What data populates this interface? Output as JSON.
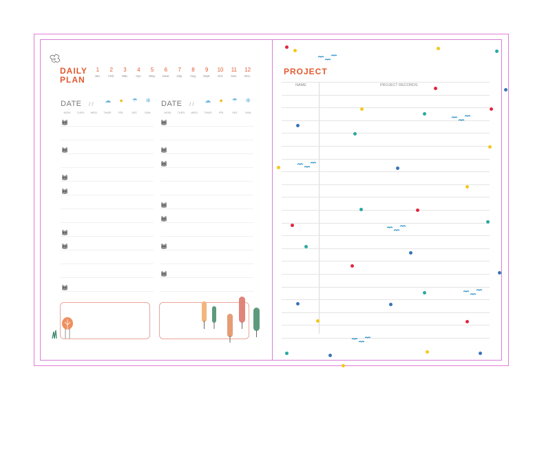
{
  "left_page": {
    "title_line1": "DAILY",
    "title_line2": "PLAN",
    "months": [
      {
        "num": "1",
        "abbr": "Jan."
      },
      {
        "num": "2",
        "abbr": "Feb."
      },
      {
        "num": "3",
        "abbr": "Mar."
      },
      {
        "num": "4",
        "abbr": "Apr."
      },
      {
        "num": "5",
        "abbr": "May."
      },
      {
        "num": "6",
        "abbr": "June."
      },
      {
        "num": "7",
        "abbr": "July."
      },
      {
        "num": "8",
        "abbr": "Aug."
      },
      {
        "num": "9",
        "abbr": "Sept."
      },
      {
        "num": "10",
        "abbr": "Oct."
      },
      {
        "num": "11",
        "abbr": "Nov."
      },
      {
        "num": "12",
        "abbr": "Dec."
      }
    ],
    "date_label": "DATE",
    "date_separator": "/ /",
    "days": [
      "MON.",
      "TUES.",
      "WED.",
      "THUR.",
      "FRI.",
      "SAT.",
      "SUN."
    ],
    "weather_icons": [
      "cloud-icon",
      "sun-icon",
      "rain-cloud-icon",
      "snowflake-icon"
    ],
    "accent_color": "#e2592f"
  },
  "right_page": {
    "title": "PROJECT",
    "col_name": "NAME",
    "col_records": "PROJECT RECORDS",
    "accent_color": "#e2592f"
  },
  "border_color": "#e17ad8"
}
